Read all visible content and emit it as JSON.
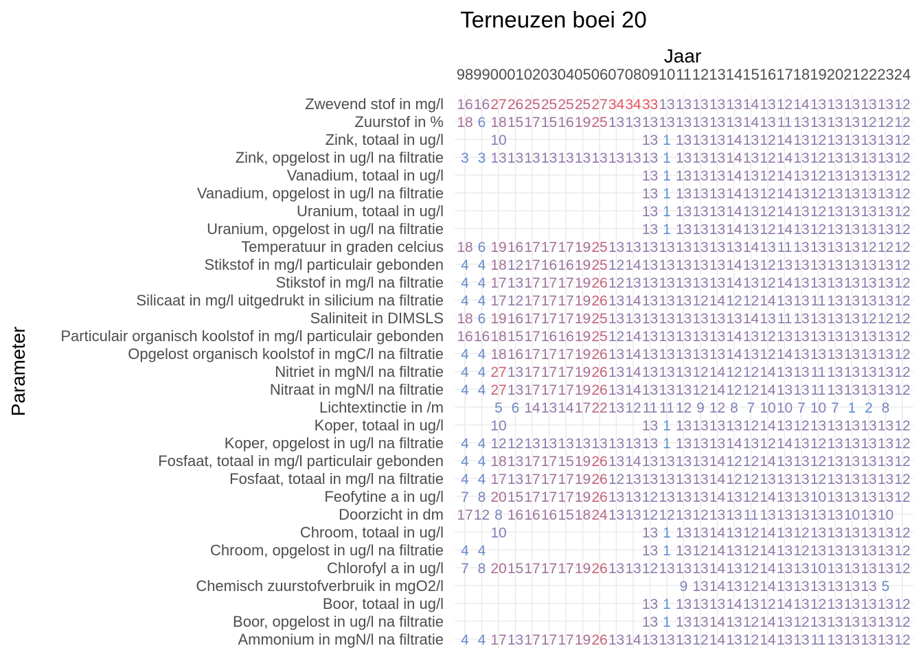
{
  "chart_data": {
    "type": "table",
    "title": "Terneuzen boei 20",
    "xlabel": "Jaar",
    "ylabel": "Parameter",
    "x_position": "top",
    "grid": true,
    "legend": "none",
    "color_low": "#5b8fd6",
    "color_high": "#e8535d",
    "color_low_value": 1,
    "color_high_value": 34,
    "x": [
      "98",
      "99",
      "00",
      "01",
      "02",
      "03",
      "04",
      "05",
      "06",
      "07",
      "08",
      "09",
      "10",
      "11",
      "12",
      "13",
      "14",
      "15",
      "16",
      "17",
      "18",
      "19",
      "20",
      "21",
      "22",
      "23",
      "24"
    ],
    "rows": [
      {
        "label": "Zwevend stof in mg/l",
        "values": [
          16,
          16,
          27,
          26,
          25,
          25,
          25,
          25,
          27,
          34,
          34,
          33,
          13,
          13,
          13,
          13,
          13,
          14,
          13,
          12,
          14,
          13,
          13,
          13,
          13,
          13,
          12
        ]
      },
      {
        "label": "Zuurstof in %",
        "values": [
          18,
          6,
          18,
          15,
          17,
          15,
          16,
          19,
          25,
          13,
          13,
          13,
          13,
          13,
          13,
          13,
          13,
          14,
          13,
          11,
          13,
          13,
          13,
          13,
          12,
          12,
          12
        ]
      },
      {
        "label": "Zink, totaal in ug/l",
        "values": [
          null,
          null,
          10,
          null,
          null,
          null,
          null,
          null,
          null,
          null,
          null,
          13,
          1,
          13,
          13,
          13,
          14,
          13,
          12,
          14,
          13,
          12,
          13,
          13,
          13,
          13,
          12
        ]
      },
      {
        "label": "Zink, opgelost in ug/l na filtratie",
        "values": [
          3,
          3,
          13,
          13,
          13,
          13,
          13,
          13,
          13,
          13,
          13,
          13,
          1,
          13,
          13,
          13,
          14,
          13,
          12,
          14,
          13,
          12,
          13,
          13,
          13,
          13,
          12
        ]
      },
      {
        "label": "Vanadium, totaal in ug/l",
        "values": [
          null,
          null,
          null,
          null,
          null,
          null,
          null,
          null,
          null,
          null,
          null,
          13,
          1,
          13,
          13,
          13,
          14,
          13,
          12,
          14,
          13,
          12,
          13,
          13,
          13,
          13,
          12
        ]
      },
      {
        "label": "Vanadium, opgelost in ug/l na filtratie",
        "values": [
          null,
          null,
          null,
          null,
          null,
          null,
          null,
          null,
          null,
          null,
          null,
          13,
          1,
          13,
          13,
          13,
          14,
          13,
          12,
          14,
          13,
          12,
          13,
          13,
          13,
          13,
          12
        ]
      },
      {
        "label": "Uranium, totaal in ug/l",
        "values": [
          null,
          null,
          null,
          null,
          null,
          null,
          null,
          null,
          null,
          null,
          null,
          13,
          1,
          13,
          13,
          13,
          14,
          13,
          12,
          14,
          13,
          12,
          13,
          13,
          13,
          13,
          12
        ]
      },
      {
        "label": "Uranium, opgelost in ug/l na filtratie",
        "values": [
          null,
          null,
          null,
          null,
          null,
          null,
          null,
          null,
          null,
          null,
          null,
          13,
          1,
          13,
          13,
          13,
          14,
          13,
          12,
          14,
          13,
          12,
          13,
          13,
          13,
          13,
          12
        ]
      },
      {
        "label": "Temperatuur in graden celcius",
        "values": [
          18,
          6,
          19,
          16,
          17,
          17,
          17,
          19,
          25,
          13,
          13,
          13,
          13,
          13,
          13,
          13,
          13,
          14,
          13,
          11,
          13,
          13,
          13,
          13,
          12,
          12,
          12
        ]
      },
      {
        "label": "Stikstof in mg/l particulair gebonden",
        "values": [
          4,
          4,
          18,
          12,
          17,
          16,
          16,
          19,
          25,
          12,
          14,
          13,
          13,
          13,
          13,
          13,
          14,
          13,
          12,
          13,
          13,
          13,
          13,
          13,
          13,
          13,
          12
        ]
      },
      {
        "label": "Stikstof in mg/l na filtratie",
        "values": [
          4,
          4,
          17,
          13,
          17,
          17,
          17,
          19,
          26,
          12,
          13,
          13,
          13,
          13,
          13,
          13,
          14,
          13,
          12,
          14,
          13,
          13,
          13,
          13,
          13,
          13,
          12
        ]
      },
      {
        "label": "Silicaat in mg/l uitgedrukt in silicium na filtratie",
        "values": [
          4,
          4,
          17,
          12,
          17,
          17,
          17,
          19,
          26,
          13,
          14,
          13,
          13,
          13,
          12,
          14,
          12,
          12,
          14,
          13,
          13,
          11,
          13,
          13,
          13,
          13,
          12
        ]
      },
      {
        "label": "Saliniteit in DIMSLS",
        "values": [
          18,
          6,
          19,
          16,
          17,
          17,
          17,
          19,
          25,
          13,
          13,
          13,
          13,
          13,
          13,
          13,
          13,
          14,
          13,
          11,
          13,
          13,
          13,
          13,
          12,
          12,
          12
        ]
      },
      {
        "label": "Particulair organisch koolstof in mg/l particulair gebonden",
        "values": [
          16,
          16,
          18,
          15,
          17,
          16,
          16,
          19,
          25,
          12,
          14,
          13,
          13,
          13,
          13,
          13,
          14,
          13,
          12,
          13,
          13,
          13,
          13,
          13,
          13,
          13,
          12
        ]
      },
      {
        "label": "Opgelost organisch koolstof in mgC/l na filtratie",
        "values": [
          4,
          4,
          18,
          16,
          17,
          17,
          17,
          19,
          26,
          13,
          14,
          13,
          13,
          13,
          13,
          13,
          14,
          13,
          12,
          14,
          13,
          13,
          13,
          13,
          13,
          13,
          12
        ]
      },
      {
        "label": "Nitriet in mgN/l na filtratie",
        "values": [
          4,
          4,
          27,
          13,
          17,
          17,
          17,
          19,
          26,
          13,
          14,
          13,
          13,
          13,
          12,
          14,
          12,
          12,
          14,
          13,
          13,
          11,
          13,
          13,
          13,
          13,
          12
        ]
      },
      {
        "label": "Nitraat in mgN/l na filtratie",
        "values": [
          4,
          4,
          27,
          13,
          17,
          17,
          17,
          19,
          26,
          13,
          14,
          13,
          13,
          13,
          12,
          14,
          12,
          12,
          14,
          13,
          13,
          11,
          13,
          13,
          13,
          13,
          12
        ]
      },
      {
        "label": "Lichtextinctie in /m",
        "values": [
          null,
          null,
          5,
          6,
          14,
          13,
          14,
          17,
          22,
          13,
          12,
          11,
          11,
          12,
          9,
          12,
          8,
          7,
          10,
          10,
          7,
          10,
          7,
          1,
          2,
          8,
          null
        ]
      },
      {
        "label": "Koper, totaal in ug/l",
        "values": [
          null,
          null,
          10,
          null,
          null,
          null,
          null,
          null,
          null,
          null,
          null,
          13,
          1,
          13,
          13,
          13,
          13,
          12,
          14,
          13,
          12,
          13,
          13,
          13,
          13,
          13,
          12
        ]
      },
      {
        "label": "Koper, opgelost in ug/l na filtratie",
        "values": [
          4,
          4,
          12,
          12,
          13,
          13,
          13,
          13,
          13,
          13,
          13,
          13,
          1,
          13,
          13,
          13,
          14,
          13,
          12,
          14,
          13,
          12,
          13,
          13,
          13,
          13,
          12
        ]
      },
      {
        "label": "Fosfaat, totaal in mg/l particulair gebonden",
        "values": [
          4,
          4,
          18,
          13,
          17,
          17,
          15,
          19,
          26,
          13,
          14,
          13,
          13,
          13,
          13,
          14,
          12,
          12,
          14,
          13,
          13,
          12,
          13,
          13,
          13,
          13,
          12
        ]
      },
      {
        "label": "Fosfaat, totaal in mg/l na filtratie",
        "values": [
          4,
          4,
          17,
          13,
          17,
          17,
          17,
          19,
          26,
          12,
          13,
          13,
          13,
          13,
          13,
          14,
          12,
          12,
          13,
          13,
          13,
          12,
          13,
          13,
          13,
          13,
          12
        ]
      },
      {
        "label": "Feofytine a in ug/l",
        "values": [
          7,
          8,
          20,
          15,
          17,
          17,
          17,
          19,
          26,
          13,
          13,
          12,
          13,
          13,
          13,
          14,
          13,
          12,
          14,
          13,
          13,
          10,
          13,
          13,
          13,
          13,
          12
        ]
      },
      {
        "label": "Doorzicht in dm",
        "values": [
          17,
          12,
          8,
          16,
          16,
          16,
          15,
          18,
          24,
          13,
          13,
          12,
          12,
          13,
          12,
          13,
          13,
          11,
          13,
          13,
          13,
          13,
          13,
          10,
          13,
          10,
          null
        ]
      },
      {
        "label": "Chroom, totaal in ug/l",
        "values": [
          null,
          null,
          10,
          null,
          null,
          null,
          null,
          null,
          null,
          null,
          null,
          13,
          1,
          13,
          13,
          14,
          13,
          12,
          14,
          13,
          12,
          13,
          13,
          13,
          13,
          13,
          12
        ]
      },
      {
        "label": "Chroom, opgelost in ug/l na filtratie",
        "values": [
          4,
          4,
          null,
          null,
          null,
          null,
          null,
          null,
          null,
          null,
          null,
          13,
          1,
          13,
          12,
          14,
          13,
          12,
          14,
          13,
          12,
          13,
          13,
          13,
          13,
          13,
          12
        ]
      },
      {
        "label": "Chlorofyl a in ug/l",
        "values": [
          7,
          8,
          20,
          15,
          17,
          17,
          17,
          19,
          26,
          13,
          13,
          12,
          13,
          13,
          13,
          14,
          13,
          12,
          14,
          13,
          13,
          10,
          13,
          13,
          13,
          13,
          12
        ]
      },
      {
        "label": "Chemisch zuurstofverbruik in mgO2/l",
        "values": [
          null,
          null,
          null,
          null,
          null,
          null,
          null,
          null,
          null,
          null,
          null,
          null,
          null,
          9,
          13,
          14,
          13,
          12,
          14,
          13,
          13,
          13,
          13,
          13,
          13,
          5,
          null
        ]
      },
      {
        "label": "Boor, totaal in ug/l",
        "values": [
          null,
          null,
          null,
          null,
          null,
          null,
          null,
          null,
          null,
          null,
          null,
          13,
          1,
          13,
          13,
          13,
          14,
          13,
          12,
          14,
          13,
          12,
          13,
          13,
          13,
          13,
          12
        ]
      },
      {
        "label": "Boor, opgelost in ug/l na filtratie",
        "values": [
          null,
          null,
          null,
          null,
          null,
          null,
          null,
          null,
          null,
          null,
          null,
          13,
          1,
          13,
          13,
          14,
          13,
          12,
          14,
          13,
          12,
          13,
          13,
          13,
          13,
          13,
          12
        ]
      },
      {
        "label": "Ammonium in mgN/l na filtratie",
        "values": [
          4,
          4,
          17,
          13,
          17,
          17,
          17,
          19,
          26,
          13,
          14,
          13,
          13,
          13,
          12,
          14,
          13,
          12,
          14,
          13,
          13,
          11,
          13,
          13,
          13,
          13,
          12
        ]
      }
    ]
  }
}
